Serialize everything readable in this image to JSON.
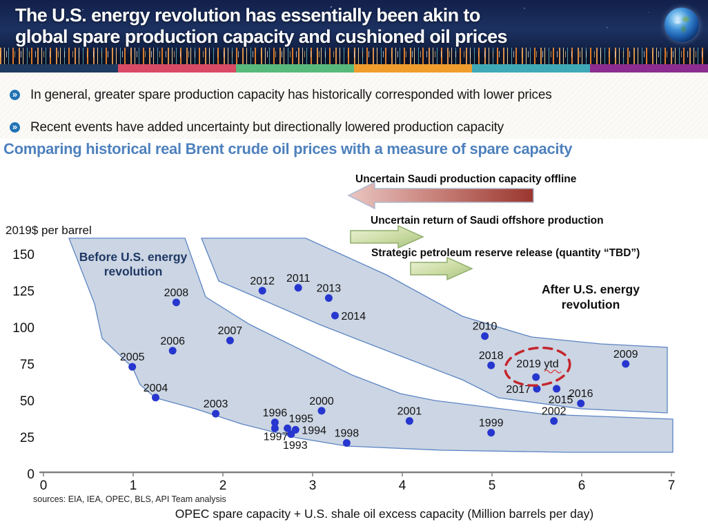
{
  "header": {
    "title_lines": [
      "The U.S. energy revolution has essentially been akin to",
      "global spare production capacity and cushioned oil prices"
    ]
  },
  "stripe_colors": [
    "#1E3A60",
    "#D94A64",
    "#57B97C",
    "#F09D2D",
    "#3FA9B8",
    "#8D2C90"
  ],
  "bullets": {
    "icon": "»",
    "items": [
      "In general, greater spare production capacity has historically corresponded with lower prices",
      "Recent events have added uncertainty but directionally lowered production capacity"
    ]
  },
  "section_heading": "Comparing historical real Brent crude oil prices with a measure of spare capacity",
  "annotations": {
    "red_arrow_label": "Uncertain Saudi production capacity offline",
    "green_arrow_1_label": "Uncertain return of Saudi offshore production",
    "green_arrow_2_label": "Strategic petroleum reserve release (quantity “TBD”)",
    "before_label_lines": [
      "Before U.S. energy",
      "revolution"
    ],
    "after_label_lines": [
      "After U.S. energy",
      "revolution"
    ],
    "highlight_label": "2019 ytd"
  },
  "chart_data": {
    "type": "scatter",
    "ylabel": "2019$ per barrel",
    "xlabel": "OPEC spare capacity + U.S. shale oil excess capacity (Million barrels per day)",
    "xlim": [
      0,
      7
    ],
    "ylim": [
      0,
      150
    ],
    "x_ticks": [
      0,
      1,
      2,
      3,
      4,
      5,
      6,
      7
    ],
    "y_ticks": [
      0,
      25,
      50,
      75,
      100,
      125,
      150
    ],
    "point_color": "#2636CE",
    "region_fill": "#CBD5E3",
    "region_stroke": "#5B84C4",
    "regions": [
      "Before U.S. energy revolution",
      "After U.S. energy revolution"
    ],
    "points": [
      {
        "label": "1993",
        "x": 2.76,
        "y": 27,
        "label_pos": "below"
      },
      {
        "label": "1994",
        "x": 2.81,
        "y": 30,
        "label_pos": "right"
      },
      {
        "label": "1995",
        "x": 2.72,
        "y": 31,
        "label_pos": "above-right"
      },
      {
        "label": "1996",
        "x": 2.58,
        "y": 35,
        "label_pos": "above"
      },
      {
        "label": "1997",
        "x": 2.58,
        "y": 31,
        "label_pos": "below-left"
      },
      {
        "label": "1998",
        "x": 3.38,
        "y": 21,
        "label_pos": "above"
      },
      {
        "label": "1999",
        "x": 4.99,
        "y": 28,
        "label_pos": "above"
      },
      {
        "label": "2000",
        "x": 3.1,
        "y": 43,
        "label_pos": "above"
      },
      {
        "label": "2001",
        "x": 4.08,
        "y": 36,
        "label_pos": "above"
      },
      {
        "label": "2002",
        "x": 5.69,
        "y": 36,
        "label_pos": "above"
      },
      {
        "label": "2003",
        "x": 1.92,
        "y": 41,
        "label_pos": "above"
      },
      {
        "label": "2004",
        "x": 1.25,
        "y": 52,
        "label_pos": "above"
      },
      {
        "label": "2005",
        "x": 0.99,
        "y": 73,
        "label_pos": "above"
      },
      {
        "label": "2006",
        "x": 1.44,
        "y": 84,
        "label_pos": "above"
      },
      {
        "label": "2007",
        "x": 2.08,
        "y": 91,
        "label_pos": "above"
      },
      {
        "label": "2008",
        "x": 1.48,
        "y": 117,
        "label_pos": "above"
      },
      {
        "label": "2009",
        "x": 6.49,
        "y": 75,
        "label_pos": "above"
      },
      {
        "label": "2010",
        "x": 4.92,
        "y": 94,
        "label_pos": "above"
      },
      {
        "label": "2011",
        "x": 2.84,
        "y": 127,
        "label_pos": "above"
      },
      {
        "label": "2012",
        "x": 2.44,
        "y": 125,
        "label_pos": "above"
      },
      {
        "label": "2013",
        "x": 3.18,
        "y": 120,
        "label_pos": "above"
      },
      {
        "label": "2014",
        "x": 3.25,
        "y": 108,
        "label_pos": "right"
      },
      {
        "label": "2015",
        "x": 5.72,
        "y": 58,
        "label_pos": "below"
      },
      {
        "label": "2016",
        "x": 5.99,
        "y": 48,
        "label_pos": "above"
      },
      {
        "label": "2017",
        "x": 5.5,
        "y": 58,
        "label_pos": "left"
      },
      {
        "label": "2018",
        "x": 4.99,
        "y": 74,
        "label_pos": "above"
      },
      {
        "label": "2019 ytd",
        "x": 5.49,
        "y": 66,
        "label_pos": "none"
      }
    ]
  },
  "footer": {
    "sources": "sources:  EIA, IEA, OPEC, BLS, API Team analysis"
  }
}
